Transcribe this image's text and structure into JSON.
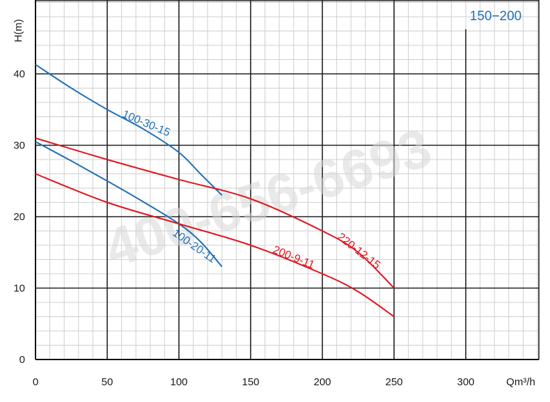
{
  "chart_data": {
    "type": "line",
    "title": "150−200",
    "xlabel": "Qm³/h",
    "ylabel": "H(m)",
    "xlim": [
      0,
      350
    ],
    "ylim": [
      0,
      50
    ],
    "x_ticks": [
      0,
      50,
      100,
      150,
      200,
      250,
      300
    ],
    "y_ticks": [
      0,
      10,
      20,
      30,
      40
    ],
    "grid": true,
    "watermark": "400-656-6693",
    "series": [
      {
        "name": "100-30-15",
        "color": "#1f6fb5",
        "x": [
          0,
          25,
          50,
          75,
          100,
          115,
          130
        ],
        "y": [
          41.3,
          38,
          35,
          32.3,
          29,
          26,
          23
        ]
      },
      {
        "name": "100-20-11",
        "color": "#1f6fb5",
        "x": [
          0,
          25,
          50,
          75,
          100,
          115,
          130
        ],
        "y": [
          30.5,
          27.8,
          25,
          22.1,
          19,
          16.5,
          13
        ]
      },
      {
        "name": "220-12-15",
        "color": "#e0141e",
        "x": [
          0,
          50,
          100,
          150,
          200,
          225,
          250
        ],
        "y": [
          31,
          28,
          25.2,
          22.5,
          18,
          15,
          10
        ]
      },
      {
        "name": "200-9-11",
        "color": "#e0141e",
        "x": [
          0,
          50,
          100,
          150,
          200,
          225,
          250
        ],
        "y": [
          26,
          22,
          19,
          16,
          12,
          9.5,
          6
        ]
      }
    ]
  }
}
